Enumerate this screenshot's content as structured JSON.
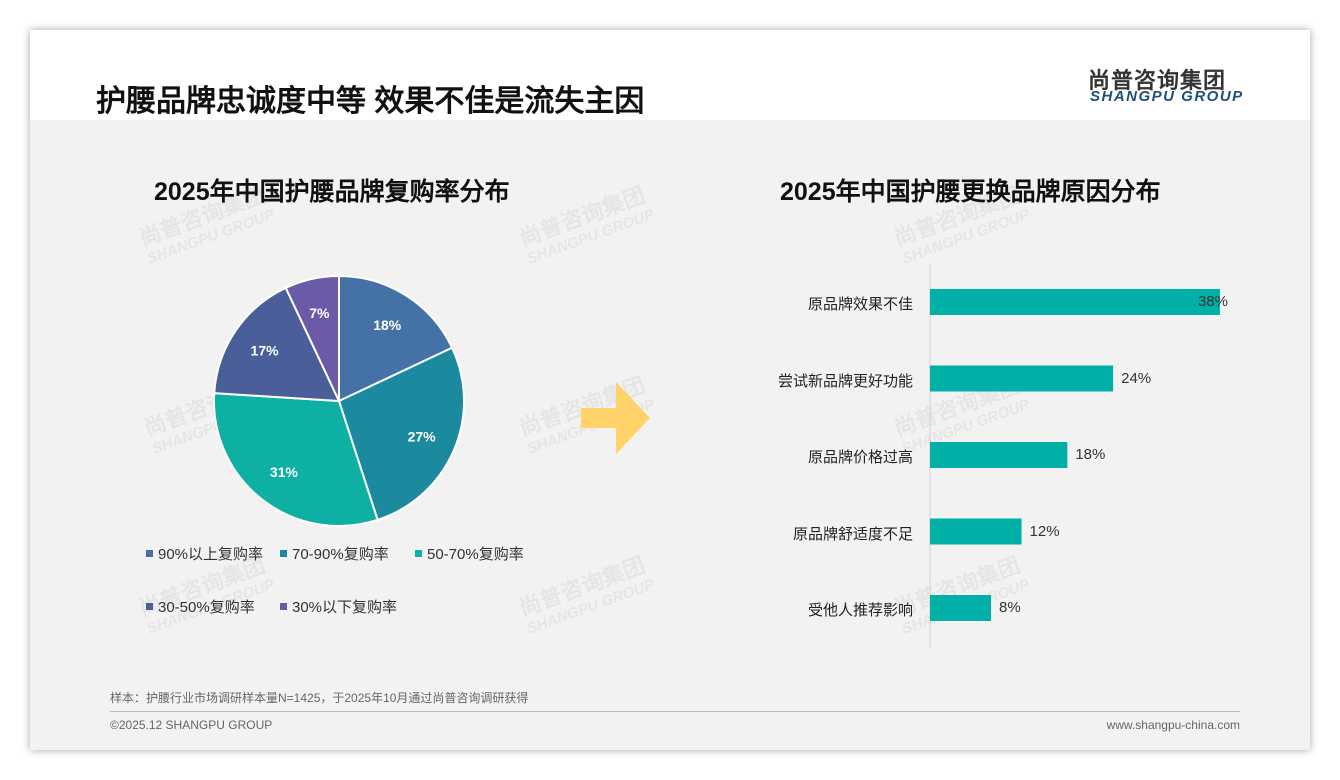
{
  "header": {
    "title": "护腰品牌忠诚度中等 效果不佳是流失主因",
    "logo_cn": "尚普咨询集团",
    "logo_en": "SHANGPU GROUP"
  },
  "watermark": {
    "cn": "尚普咨询集团",
    "en": "SHANGPU GROUP"
  },
  "chart_data": [
    {
      "type": "pie",
      "title": "2025年中国护腰品牌复购率分布",
      "categories": [
        "90%以上复购率",
        "70-90%复购率",
        "50-70%复购率",
        "30-50%复购率",
        "30%以下复购率"
      ],
      "values": [
        18,
        27,
        31,
        17,
        7
      ],
      "labels": [
        "18%",
        "27%",
        "31%",
        "17%",
        "7%"
      ],
      "colors": [
        "#4472a6",
        "#1b8a9e",
        "#0fb0a4",
        "#4a5e99",
        "#6a5aa8"
      ],
      "legend": "bottom"
    },
    {
      "type": "bar",
      "orientation": "horizontal",
      "title": "2025年中国护腰更换品牌原因分布",
      "categories": [
        "原品牌效果不佳",
        "尝试新品牌更好功能",
        "原品牌价格过高",
        "原品牌舒适度不足",
        "受他人推荐影响"
      ],
      "values": [
        38,
        24,
        18,
        12,
        8
      ],
      "labels": [
        "38%",
        "24%",
        "18%",
        "12%",
        "8%"
      ],
      "color": "#00b0a6"
    }
  ],
  "footer": {
    "note": "样本：护腰行业市场调研样本量N=1425，于2025年10月通过尚普咨询调研获得",
    "copyright": "©2025.12 SHANGPU GROUP",
    "url": "www.shangpu-china.com"
  }
}
